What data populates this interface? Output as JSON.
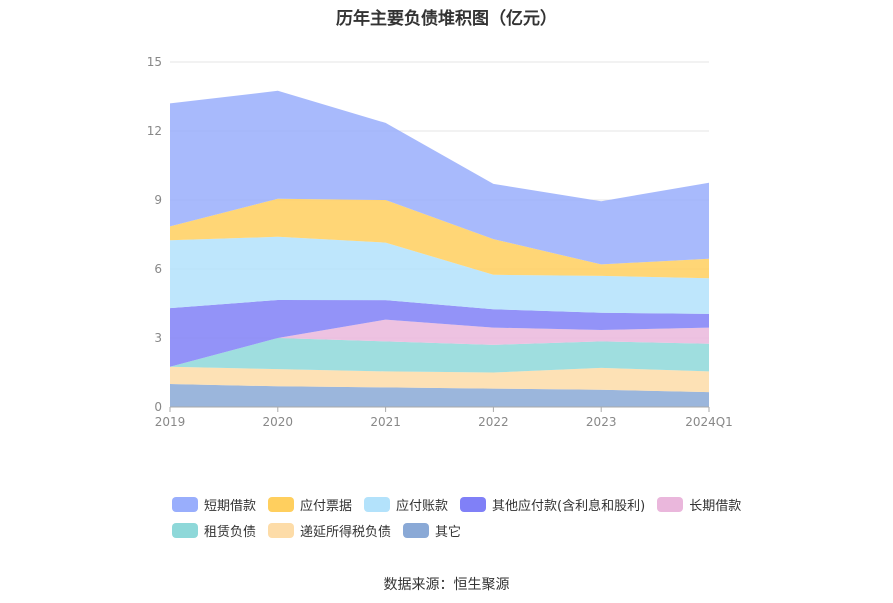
{
  "title": "历年主要负债堆积图（亿元）",
  "source": "数据来源：恒生聚源",
  "chart_data": {
    "type": "area",
    "stacked": true,
    "title": "历年主要负债堆积图（亿元）",
    "xlabel": "",
    "ylabel": "",
    "ylim": [
      0,
      15
    ],
    "yticks": [
      "0",
      "3",
      "6",
      "9",
      "12",
      "15"
    ],
    "categories": [
      "2019",
      "2020",
      "2021",
      "2022",
      "2023",
      "2024Q1"
    ],
    "grid": true,
    "legend_position": "bottom",
    "series": [
      {
        "name": "其它",
        "color": "#8aa9d6",
        "values": [
          1.0,
          0.9,
          0.85,
          0.8,
          0.75,
          0.65
        ]
      },
      {
        "name": "递延所得税负债",
        "color": "#fddca8",
        "values": [
          0.75,
          0.75,
          0.7,
          0.7,
          0.95,
          0.9
        ]
      },
      {
        "name": "租赁负债",
        "color": "#8ed8d9",
        "values": [
          0.0,
          1.35,
          1.3,
          1.2,
          1.15,
          1.2
        ]
      },
      {
        "name": "长期借款",
        "color": "#eab7dc",
        "values": [
          0.0,
          0.0,
          0.95,
          0.75,
          0.5,
          0.7
        ]
      },
      {
        "name": "其他应付款(含利息和股利)",
        "color": "#8080f7",
        "values": [
          2.55,
          1.65,
          0.85,
          0.8,
          0.75,
          0.6
        ]
      },
      {
        "name": "应付账款",
        "color": "#b3e2fb",
        "values": [
          2.95,
          2.75,
          2.5,
          1.5,
          1.6,
          1.55
        ]
      },
      {
        "name": "应付票据",
        "color": "#ffcf5e",
        "values": [
          0.6,
          1.65,
          1.85,
          1.55,
          0.5,
          0.85
        ]
      },
      {
        "name": "短期借款",
        "color": "#99aefc",
        "values": [
          5.35,
          4.7,
          3.35,
          2.4,
          2.75,
          3.3
        ]
      }
    ]
  },
  "legend": [
    {
      "name": "短期借款",
      "color": "#99aefc"
    },
    {
      "name": "应付票据",
      "color": "#ffcf5e"
    },
    {
      "name": "应付账款",
      "color": "#b3e2fb"
    },
    {
      "name": "其他应付款(含利息和股利)",
      "color": "#8080f7"
    },
    {
      "name": "长期借款",
      "color": "#eab7dc"
    },
    {
      "name": "租赁负债",
      "color": "#8ed8d9"
    },
    {
      "name": "递延所得税负债",
      "color": "#fddca8"
    },
    {
      "name": "其它",
      "color": "#8aa9d6"
    }
  ]
}
